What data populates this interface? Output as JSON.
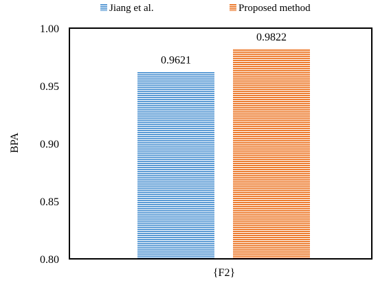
{
  "chart_data": {
    "type": "bar",
    "title": "",
    "xlabel": "",
    "ylabel": "BPA",
    "categories": [
      "{F2}"
    ],
    "series": [
      {
        "name": "Jiang et al.",
        "values": [
          0.9621
        ],
        "color": "#5b9bd5",
        "data_label": "0.9621"
      },
      {
        "name": "Proposed method",
        "values": [
          0.9822
        ],
        "color": "#ed7d31",
        "data_label": "0.9822"
      }
    ],
    "ylim": [
      0.8,
      1.0
    ],
    "yticks": [
      "0.80",
      "0.85",
      "0.90",
      "0.95",
      "1.00"
    ],
    "ytick_values": [
      0.8,
      0.85,
      0.9,
      0.95,
      1.0
    ],
    "grid": false,
    "legend_position": "top",
    "bar_fill": "horizontal-stripes"
  }
}
